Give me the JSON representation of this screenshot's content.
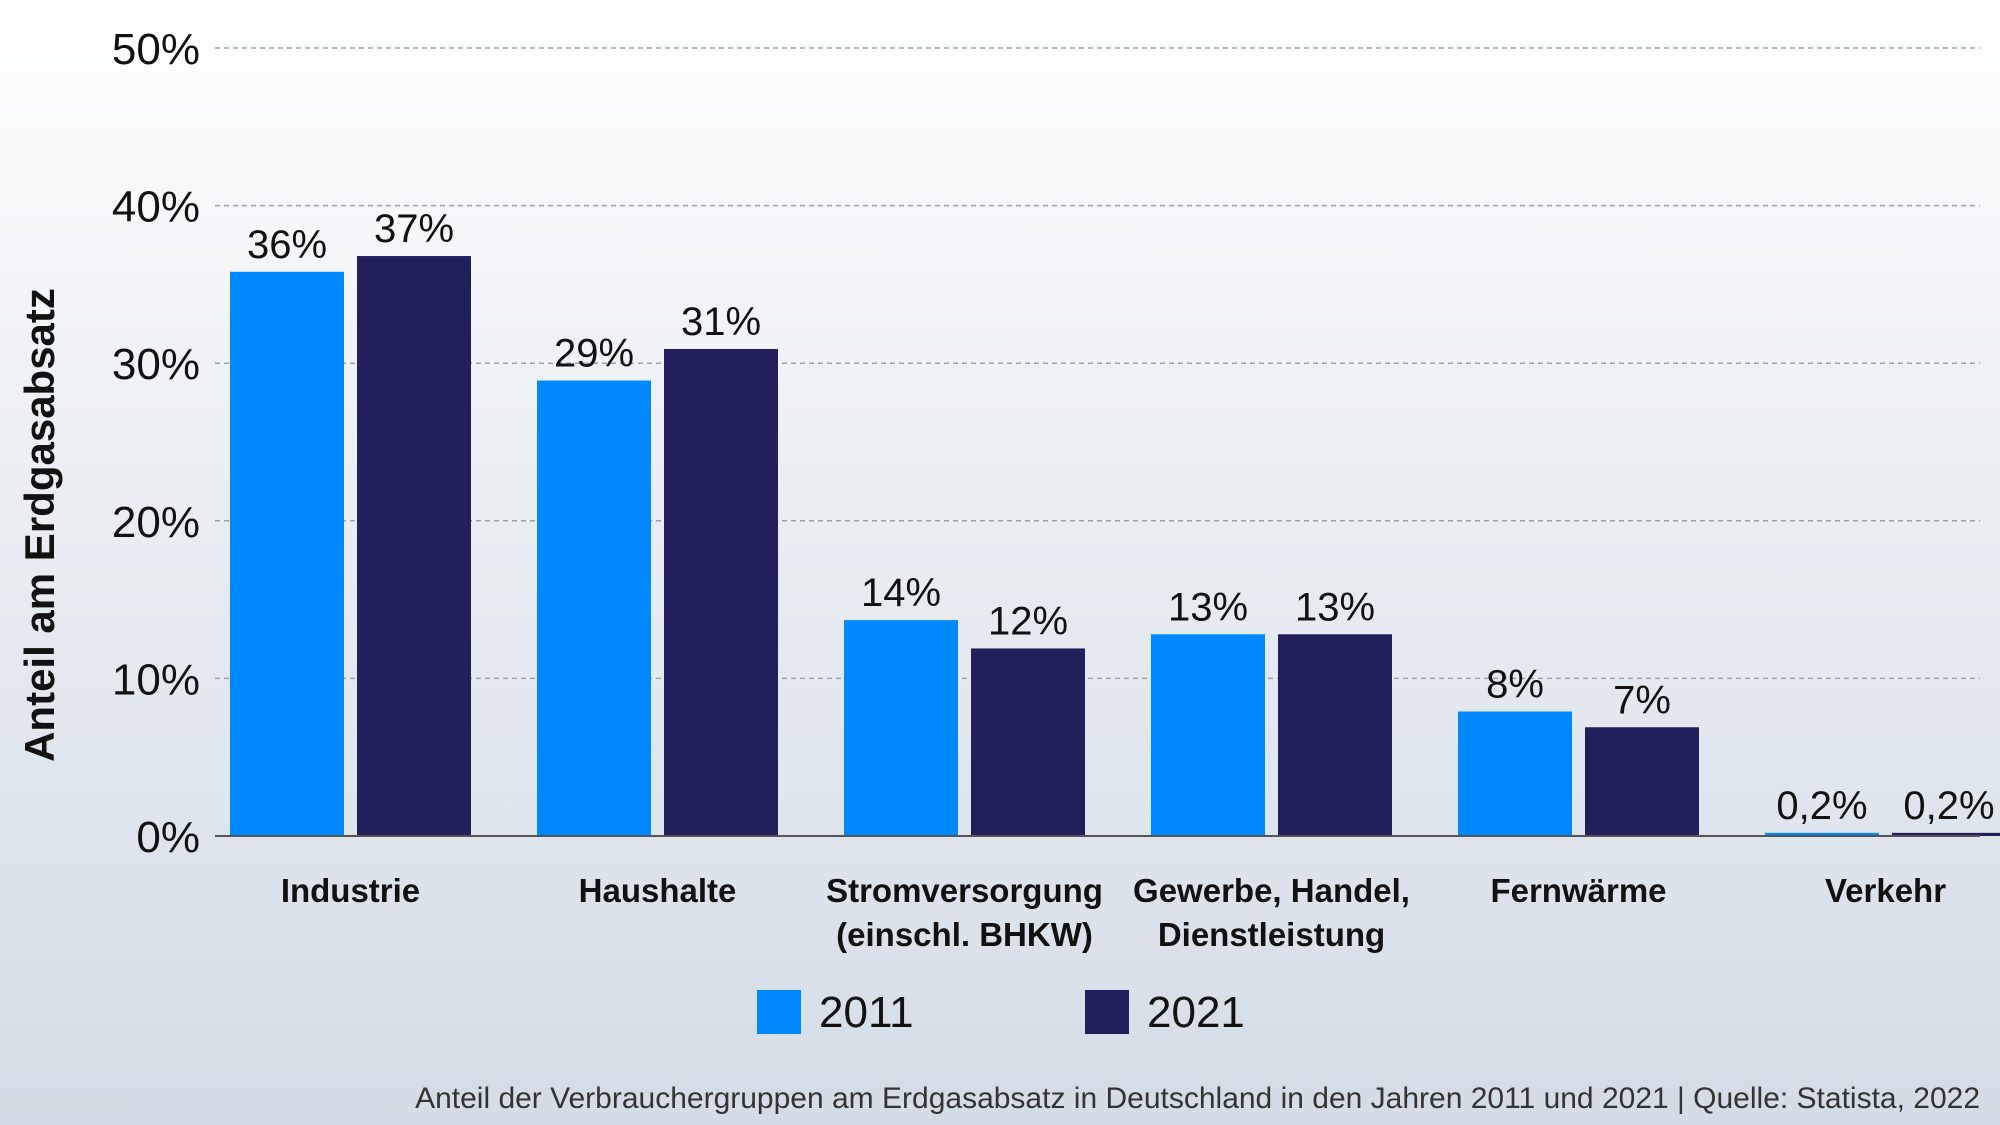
{
  "chart_data": {
    "type": "bar",
    "title": "",
    "xlabel": "",
    "ylabel": "Anteil am Erdgasabsatz",
    "ylim": [
      0,
      50
    ],
    "y_ticks": [
      {
        "value": 0,
        "label": "0%"
      },
      {
        "value": 10,
        "label": "10%"
      },
      {
        "value": 20,
        "label": "20%"
      },
      {
        "value": 30,
        "label": "30%"
      },
      {
        "value": 40,
        "label": "40%"
      },
      {
        "value": 50,
        "label": "50%"
      }
    ],
    "grid": true,
    "categories": [
      [
        "Industrie"
      ],
      [
        "Haushalte"
      ],
      [
        "Stromversorgung",
        "(einschl. BHKW)"
      ],
      [
        "Gewerbe, Handel,",
        "Dienstleistung"
      ],
      [
        "Fernwärme"
      ],
      [
        "Verkehr"
      ]
    ],
    "series": [
      {
        "name": "2011",
        "color": "#0088ff",
        "values": [
          35.8,
          28.9,
          13.7,
          12.8,
          7.9,
          0.2
        ],
        "labels": [
          "36%",
          "29%",
          "14%",
          "13%",
          "8%",
          "0,2%"
        ]
      },
      {
        "name": "2021",
        "color": "#211f5c",
        "values": [
          36.8,
          30.9,
          11.9,
          12.8,
          6.9,
          0.2
        ],
        "labels": [
          "37%",
          "31%",
          "12%",
          "13%",
          "7%",
          "0,2%"
        ]
      }
    ],
    "legend_position": "bottom-center",
    "caption": "Anteil der Verbrauchergruppen am Erdgasabsatz in Deutschland in den Jahren 2011 und 2021 | Quelle: Statista, 2022"
  },
  "colors": {
    "grid": "#9aa3ad",
    "axis": "#555555"
  }
}
